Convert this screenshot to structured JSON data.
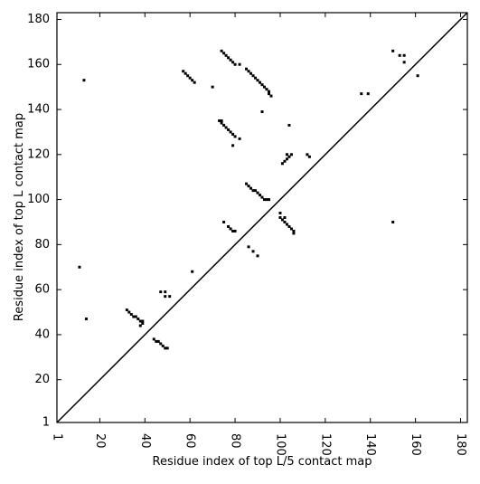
{
  "chart_data": {
    "type": "scatter",
    "xlabel": "Residue index of top L/5 contact map",
    "ylabel": "Residue index of top L contact map",
    "xlim": [
      1,
      183
    ],
    "ylim": [
      1,
      183
    ],
    "xticks": [
      1,
      20,
      40,
      60,
      80,
      100,
      120,
      140,
      160,
      180
    ],
    "yticks": [
      1,
      20,
      40,
      60,
      80,
      100,
      120,
      140,
      160,
      180
    ],
    "color": "#000000",
    "x": [
      74,
      75,
      76,
      77,
      78,
      79,
      80,
      82,
      85,
      86,
      87,
      88,
      89,
      90,
      91,
      92,
      93,
      94,
      95,
      95,
      96,
      57,
      58,
      59,
      60,
      61,
      62,
      70,
      13,
      92,
      104,
      73,
      74,
      74,
      75,
      76,
      77,
      78,
      79,
      80,
      82,
      79,
      101,
      102,
      103,
      104,
      103,
      105,
      112,
      113,
      85,
      86,
      87,
      88,
      89,
      90,
      91,
      92,
      93,
      94,
      95,
      100,
      100,
      101,
      102,
      102,
      103,
      104,
      105,
      106,
      106,
      75,
      77,
      78,
      79,
      80,
      86,
      88,
      90,
      61,
      11,
      14,
      47,
      49,
      49,
      51,
      32,
      33,
      34,
      35,
      36,
      37,
      38,
      39,
      39,
      38,
      44,
      45,
      46,
      47,
      48,
      49,
      50,
      150,
      153,
      155,
      155,
      161,
      136,
      139,
      150
    ],
    "values": [
      166,
      165,
      164,
      163,
      162,
      161,
      160,
      160,
      158,
      157,
      156,
      155,
      154,
      153,
      152,
      151,
      150,
      149,
      148,
      147,
      146,
      157,
      156,
      155,
      154,
      153,
      152,
      150,
      153,
      139,
      133,
      135,
      135,
      134,
      133,
      132,
      131,
      130,
      129,
      128,
      127,
      124,
      116,
      117,
      118,
      119,
      120,
      120,
      120,
      119,
      107,
      106,
      105,
      104,
      104,
      103,
      102,
      101,
      100,
      100,
      100,
      94,
      92,
      91,
      92,
      90,
      89,
      88,
      87,
      86,
      85,
      90,
      88,
      87,
      86,
      86,
      79,
      77,
      75,
      68,
      70,
      47,
      59,
      59,
      57,
      57,
      51,
      50,
      49,
      48,
      48,
      47,
      46,
      46,
      45,
      44,
      38,
      37,
      37,
      36,
      35,
      34,
      34,
      166,
      164,
      164,
      161,
      155,
      147,
      147,
      90
    ]
  }
}
